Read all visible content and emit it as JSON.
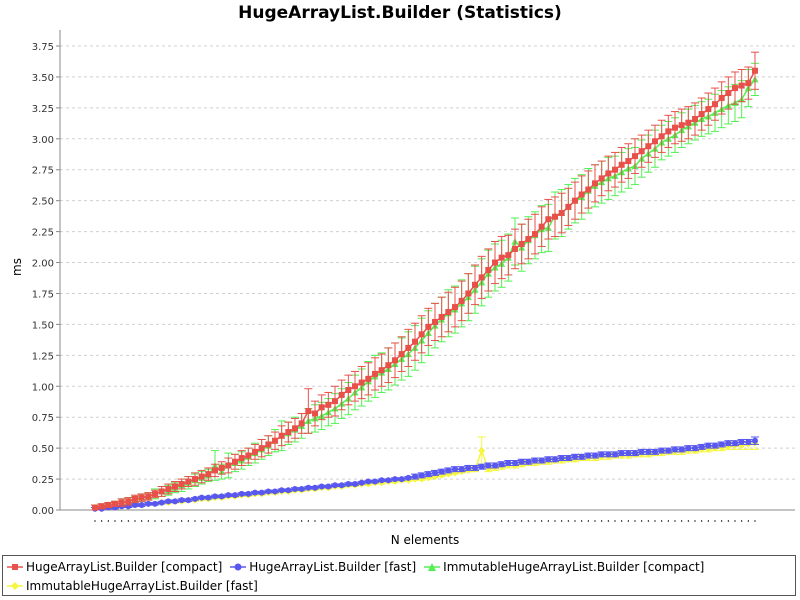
{
  "chart_data": {
    "type": "line",
    "title": "HugeArrayList.Builder (Statistics)",
    "xlabel": "N elements",
    "ylabel": "ms",
    "ylim": [
      0,
      3.75
    ],
    "yticks": [
      "0.00",
      "0.25",
      "0.50",
      "0.75",
      "1.00",
      "1.25",
      "1.50",
      "1.75",
      "2.00",
      "2.25",
      "2.50",
      "2.75",
      "3.00",
      "3.25",
      "3.50",
      "3.75"
    ],
    "grid": true,
    "legend_position": "bottom",
    "x_points": 100,
    "series": [
      {
        "name": "HugeArrayList.Builder [compact]",
        "color": "#e8504a",
        "marker": "square",
        "error_bars": true,
        "values": [
          0.02,
          0.03,
          0.04,
          0.05,
          0.06,
          0.07,
          0.09,
          0.1,
          0.11,
          0.13,
          0.15,
          0.17,
          0.19,
          0.21,
          0.23,
          0.25,
          0.27,
          0.29,
          0.32,
          0.34,
          0.36,
          0.39,
          0.42,
          0.44,
          0.47,
          0.5,
          0.53,
          0.56,
          0.6,
          0.63,
          0.66,
          0.7,
          0.8,
          0.78,
          0.83,
          0.85,
          0.88,
          0.93,
          0.97,
          1.0,
          1.03,
          1.06,
          1.1,
          1.13,
          1.17,
          1.21,
          1.26,
          1.31,
          1.36,
          1.42,
          1.48,
          1.52,
          1.56,
          1.6,
          1.64,
          1.69,
          1.75,
          1.82,
          1.88,
          1.94,
          2.0,
          2.04,
          2.06,
          2.11,
          2.15,
          2.19,
          2.23,
          2.29,
          2.35,
          2.37,
          2.4,
          2.45,
          2.5,
          2.55,
          2.59,
          2.64,
          2.68,
          2.72,
          2.75,
          2.79,
          2.82,
          2.86,
          2.9,
          2.94,
          2.98,
          3.02,
          3.06,
          3.09,
          3.11,
          3.13,
          3.16,
          3.2,
          3.24,
          3.28,
          3.33,
          3.37,
          3.41,
          3.43,
          3.45,
          3.55
        ],
        "errors": [
          0.02,
          0.02,
          0.02,
          0.02,
          0.03,
          0.03,
          0.03,
          0.03,
          0.03,
          0.03,
          0.04,
          0.04,
          0.04,
          0.04,
          0.04,
          0.05,
          0.05,
          0.05,
          0.05,
          0.05,
          0.06,
          0.06,
          0.06,
          0.06,
          0.06,
          0.07,
          0.07,
          0.07,
          0.08,
          0.08,
          0.08,
          0.08,
          0.18,
          0.1,
          0.1,
          0.1,
          0.12,
          0.12,
          0.12,
          0.12,
          0.13,
          0.13,
          0.13,
          0.13,
          0.14,
          0.14,
          0.14,
          0.15,
          0.15,
          0.15,
          0.15,
          0.15,
          0.16,
          0.16,
          0.16,
          0.16,
          0.16,
          0.16,
          0.17,
          0.17,
          0.17,
          0.17,
          0.16,
          0.16,
          0.16,
          0.16,
          0.16,
          0.16,
          0.16,
          0.16,
          0.16,
          0.15,
          0.15,
          0.15,
          0.15,
          0.15,
          0.14,
          0.14,
          0.14,
          0.14,
          0.14,
          0.14,
          0.13,
          0.13,
          0.13,
          0.13,
          0.13,
          0.13,
          0.13,
          0.13,
          0.13,
          0.13,
          0.13,
          0.13,
          0.13,
          0.13,
          0.13,
          0.13,
          0.13,
          0.15
        ]
      },
      {
        "name": "HugeArrayList.Builder [fast]",
        "color": "#5858f0",
        "marker": "circle",
        "error_bars": true,
        "values": [
          0.01,
          0.01,
          0.02,
          0.02,
          0.03,
          0.03,
          0.04,
          0.04,
          0.05,
          0.05,
          0.06,
          0.07,
          0.07,
          0.08,
          0.08,
          0.09,
          0.1,
          0.1,
          0.11,
          0.11,
          0.12,
          0.12,
          0.13,
          0.13,
          0.14,
          0.14,
          0.15,
          0.15,
          0.16,
          0.16,
          0.17,
          0.17,
          0.18,
          0.18,
          0.19,
          0.19,
          0.2,
          0.2,
          0.21,
          0.21,
          0.22,
          0.23,
          0.23,
          0.24,
          0.24,
          0.25,
          0.25,
          0.26,
          0.27,
          0.28,
          0.29,
          0.3,
          0.31,
          0.32,
          0.33,
          0.33,
          0.34,
          0.34,
          0.35,
          0.36,
          0.36,
          0.37,
          0.38,
          0.38,
          0.39,
          0.39,
          0.4,
          0.4,
          0.41,
          0.41,
          0.42,
          0.42,
          0.43,
          0.43,
          0.44,
          0.44,
          0.45,
          0.45,
          0.45,
          0.46,
          0.46,
          0.46,
          0.47,
          0.47,
          0.47,
          0.48,
          0.48,
          0.49,
          0.49,
          0.5,
          0.5,
          0.51,
          0.52,
          0.52,
          0.53,
          0.54,
          0.54,
          0.55,
          0.55,
          0.56
        ],
        "errors": [
          0.01,
          0.01,
          0.01,
          0.01,
          0.01,
          0.01,
          0.01,
          0.01,
          0.01,
          0.01,
          0.01,
          0.01,
          0.01,
          0.01,
          0.01,
          0.01,
          0.01,
          0.01,
          0.01,
          0.01,
          0.01,
          0.01,
          0.01,
          0.01,
          0.01,
          0.01,
          0.01,
          0.01,
          0.01,
          0.01,
          0.01,
          0.01,
          0.01,
          0.01,
          0.01,
          0.01,
          0.01,
          0.01,
          0.01,
          0.01,
          0.01,
          0.01,
          0.01,
          0.01,
          0.01,
          0.01,
          0.01,
          0.01,
          0.02,
          0.02,
          0.02,
          0.02,
          0.02,
          0.02,
          0.02,
          0.02,
          0.02,
          0.02,
          0.02,
          0.02,
          0.02,
          0.02,
          0.02,
          0.02,
          0.02,
          0.02,
          0.02,
          0.02,
          0.02,
          0.02,
          0.02,
          0.02,
          0.02,
          0.02,
          0.02,
          0.02,
          0.02,
          0.02,
          0.02,
          0.02,
          0.02,
          0.02,
          0.02,
          0.02,
          0.02,
          0.02,
          0.02,
          0.02,
          0.02,
          0.02,
          0.02,
          0.02,
          0.02,
          0.02,
          0.02,
          0.02,
          0.02,
          0.02,
          0.02,
          0.03
        ]
      },
      {
        "name": "ImmutableHugeArrayList.Builder [compact]",
        "color": "#52f052",
        "marker": "triangle",
        "error_bars": true,
        "values": [
          0.02,
          0.03,
          0.04,
          0.05,
          0.06,
          0.07,
          0.08,
          0.1,
          0.11,
          0.13,
          0.15,
          0.16,
          0.18,
          0.2,
          0.22,
          0.24,
          0.26,
          0.28,
          0.36,
          0.31,
          0.36,
          0.38,
          0.4,
          0.43,
          0.46,
          0.49,
          0.52,
          0.56,
          0.6,
          0.62,
          0.65,
          0.68,
          0.72,
          0.74,
          0.76,
          0.79,
          0.82,
          0.86,
          0.9,
          0.95,
          0.99,
          1.04,
          1.08,
          1.11,
          1.14,
          1.18,
          1.22,
          1.26,
          1.31,
          1.37,
          1.43,
          1.49,
          1.54,
          1.59,
          1.62,
          1.67,
          1.72,
          1.78,
          1.84,
          1.91,
          1.96,
          1.99,
          2.04,
          2.17,
          2.12,
          2.18,
          2.22,
          2.27,
          2.28,
          2.38,
          2.4,
          2.45,
          2.5,
          2.53,
          2.58,
          2.62,
          2.65,
          2.68,
          2.7,
          2.73,
          2.76,
          2.78,
          2.84,
          2.88,
          2.92,
          2.97,
          3.0,
          3.03,
          3.07,
          3.1,
          3.13,
          3.16,
          3.18,
          3.21,
          3.24,
          3.27,
          3.29,
          3.32,
          3.41,
          3.48
        ],
        "errors": [
          0.02,
          0.02,
          0.02,
          0.02,
          0.03,
          0.03,
          0.03,
          0.03,
          0.03,
          0.04,
          0.04,
          0.04,
          0.04,
          0.05,
          0.05,
          0.05,
          0.05,
          0.05,
          0.12,
          0.06,
          0.1,
          0.07,
          0.07,
          0.07,
          0.08,
          0.08,
          0.08,
          0.09,
          0.12,
          0.09,
          0.1,
          0.1,
          0.1,
          0.11,
          0.11,
          0.11,
          0.12,
          0.12,
          0.13,
          0.14,
          0.15,
          0.16,
          0.17,
          0.16,
          0.17,
          0.17,
          0.17,
          0.18,
          0.18,
          0.18,
          0.18,
          0.18,
          0.18,
          0.19,
          0.19,
          0.19,
          0.19,
          0.19,
          0.19,
          0.19,
          0.19,
          0.19,
          0.19,
          0.19,
          0.19,
          0.19,
          0.19,
          0.19,
          0.19,
          0.19,
          0.19,
          0.18,
          0.18,
          0.18,
          0.18,
          0.17,
          0.17,
          0.17,
          0.16,
          0.16,
          0.16,
          0.15,
          0.15,
          0.15,
          0.15,
          0.14,
          0.14,
          0.14,
          0.14,
          0.14,
          0.14,
          0.14,
          0.14,
          0.15,
          0.15,
          0.15,
          0.15,
          0.15,
          0.15,
          0.13
        ]
      },
      {
        "name": "ImmutableHugeArrayList.Builder [fast]",
        "color": "#f6f640",
        "marker": "diamond",
        "error_bars": true,
        "values": [
          0.01,
          0.01,
          0.02,
          0.02,
          0.03,
          0.03,
          0.04,
          0.04,
          0.05,
          0.05,
          0.06,
          0.06,
          0.07,
          0.07,
          0.08,
          0.08,
          0.09,
          0.09,
          0.1,
          0.1,
          0.11,
          0.11,
          0.12,
          0.12,
          0.13,
          0.13,
          0.14,
          0.14,
          0.15,
          0.15,
          0.16,
          0.16,
          0.17,
          0.17,
          0.18,
          0.18,
          0.19,
          0.19,
          0.2,
          0.2,
          0.21,
          0.21,
          0.22,
          0.22,
          0.23,
          0.23,
          0.24,
          0.24,
          0.25,
          0.25,
          0.26,
          0.27,
          0.28,
          0.29,
          0.3,
          0.31,
          0.32,
          0.33,
          0.48,
          0.33,
          0.34,
          0.35,
          0.36,
          0.36,
          0.37,
          0.38,
          0.38,
          0.39,
          0.39,
          0.4,
          0.4,
          0.41,
          0.41,
          0.42,
          0.42,
          0.42,
          0.43,
          0.43,
          0.44,
          0.44,
          0.44,
          0.45,
          0.45,
          0.45,
          0.46,
          0.46,
          0.47,
          0.47,
          0.47,
          0.48,
          0.48,
          0.49,
          0.49,
          0.5,
          0.5,
          0.51,
          0.52,
          0.52,
          0.53,
          0.54
        ],
        "errors": [
          0.01,
          0.01,
          0.01,
          0.01,
          0.01,
          0.01,
          0.01,
          0.01,
          0.01,
          0.01,
          0.01,
          0.01,
          0.01,
          0.01,
          0.01,
          0.01,
          0.01,
          0.01,
          0.01,
          0.01,
          0.01,
          0.01,
          0.01,
          0.01,
          0.01,
          0.01,
          0.01,
          0.01,
          0.01,
          0.01,
          0.01,
          0.01,
          0.01,
          0.01,
          0.01,
          0.01,
          0.01,
          0.01,
          0.01,
          0.01,
          0.01,
          0.01,
          0.01,
          0.01,
          0.01,
          0.01,
          0.01,
          0.01,
          0.01,
          0.01,
          0.01,
          0.01,
          0.01,
          0.01,
          0.01,
          0.01,
          0.01,
          0.02,
          0.11,
          0.02,
          0.02,
          0.02,
          0.02,
          0.02,
          0.02,
          0.02,
          0.02,
          0.02,
          0.02,
          0.02,
          0.02,
          0.02,
          0.02,
          0.02,
          0.02,
          0.02,
          0.02,
          0.02,
          0.02,
          0.02,
          0.02,
          0.02,
          0.02,
          0.02,
          0.02,
          0.02,
          0.02,
          0.02,
          0.02,
          0.02,
          0.02,
          0.02,
          0.02,
          0.02,
          0.02,
          0.02,
          0.03,
          0.03,
          0.04,
          0.05
        ]
      }
    ]
  }
}
